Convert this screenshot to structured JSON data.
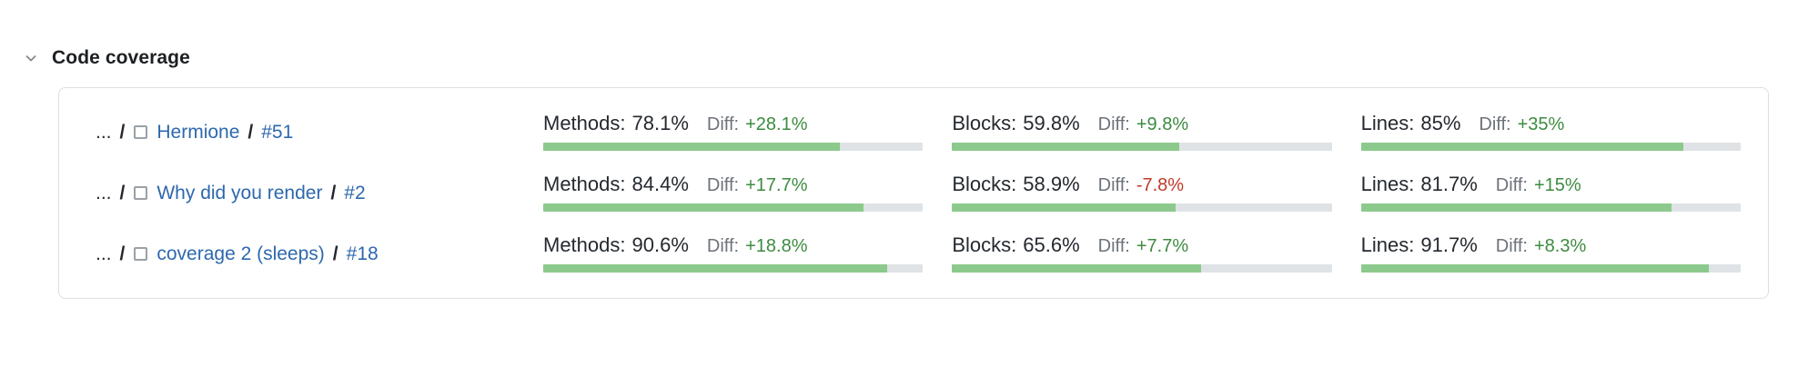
{
  "header": {
    "title": "Code coverage"
  },
  "colors": {
    "link_blue": "#2d68ae",
    "diff_positive": "#3d8b40",
    "diff_negative": "#c0392b",
    "bar_fill": "#8cc98c",
    "bar_track": "#dfe3e6",
    "panel_border": "#dcdfe3",
    "text_dark": "#24292f",
    "text_gray": "#6d737a"
  },
  "icons": {
    "collapse": "chevron-down-icon",
    "project": "square-outline-icon"
  },
  "rows": [
    {
      "breadcrumb": {
        "ellipsis": "...",
        "sep1": "/",
        "name": "Hermione",
        "sep2": "/",
        "build_number": "#51"
      },
      "metrics": [
        {
          "label": "Methods:",
          "value": "78.1%",
          "diff_label": "Diff:",
          "diff": "+28.1%",
          "trend": "positive",
          "bar_percent": 78.1
        },
        {
          "label": "Blocks:",
          "value": "59.8%",
          "diff_label": "Diff:",
          "diff": "+9.8%",
          "trend": "positive",
          "bar_percent": 59.8
        },
        {
          "label": "Lines:",
          "value": "85%",
          "diff_label": "Diff:",
          "diff": "+35%",
          "trend": "positive",
          "bar_percent": 85
        }
      ]
    },
    {
      "breadcrumb": {
        "ellipsis": "...",
        "sep1": "/",
        "name": "Why did you render",
        "sep2": "/",
        "build_number": "#2"
      },
      "metrics": [
        {
          "label": "Methods:",
          "value": "84.4%",
          "diff_label": "Diff:",
          "diff": "+17.7%",
          "trend": "positive",
          "bar_percent": 84.4
        },
        {
          "label": "Blocks:",
          "value": "58.9%",
          "diff_label": "Diff:",
          "diff": "-7.8%",
          "trend": "negative",
          "bar_percent": 58.9
        },
        {
          "label": "Lines:",
          "value": "81.7%",
          "diff_label": "Diff:",
          "diff": "+15%",
          "trend": "positive",
          "bar_percent": 81.7
        }
      ]
    },
    {
      "breadcrumb": {
        "ellipsis": "...",
        "sep1": "/",
        "name": "coverage 2 (sleeps)",
        "sep2": "/",
        "build_number": "#18"
      },
      "metrics": [
        {
          "label": "Methods:",
          "value": "90.6%",
          "diff_label": "Diff:",
          "diff": "+18.8%",
          "trend": "positive",
          "bar_percent": 90.6
        },
        {
          "label": "Blocks:",
          "value": "65.6%",
          "diff_label": "Diff:",
          "diff": "+7.7%",
          "trend": "positive",
          "bar_percent": 65.6
        },
        {
          "label": "Lines:",
          "value": "91.7%",
          "diff_label": "Diff:",
          "diff": "+8.3%",
          "trend": "positive",
          "bar_percent": 91.7
        }
      ]
    }
  ]
}
